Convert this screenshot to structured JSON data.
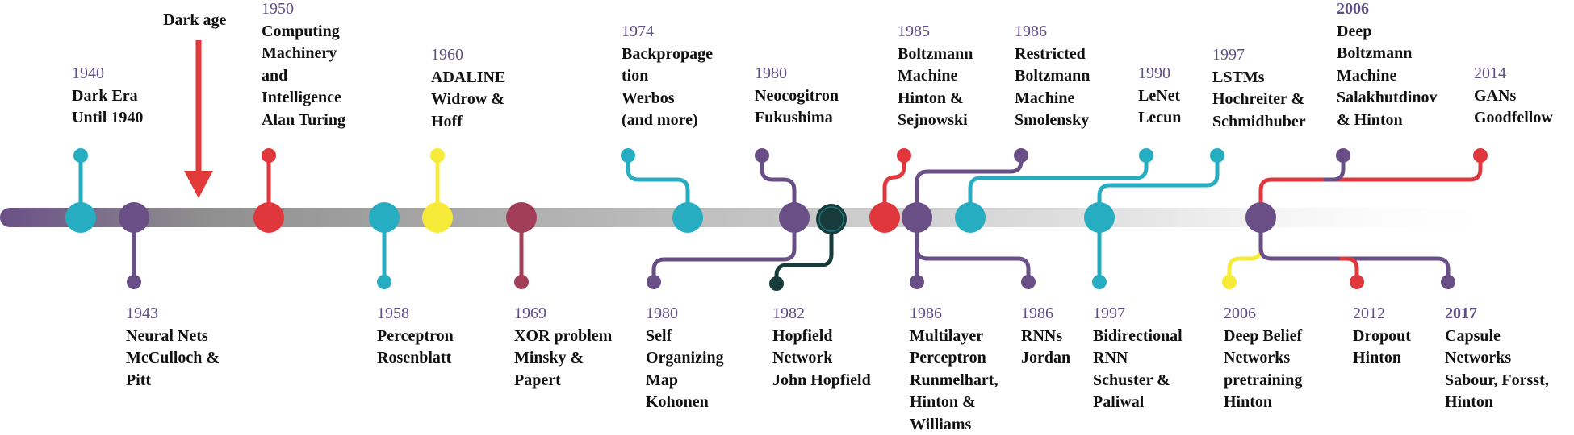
{
  "colors": {
    "teal": "#27adc1",
    "purple": "#6a4f86",
    "red": "#e0373d",
    "yellow": "#f7eb3a",
    "maroon": "#a33e58",
    "dark_green": "#173a3a",
    "arrow": "#e23a3a",
    "year_text": "#5e4f86",
    "label_text": "#111111"
  },
  "dark_age": {
    "label": "Dark age"
  },
  "events": [
    {
      "id": "e1940",
      "year": "1940",
      "lines": [
        "Dark Era",
        "Until 1940"
      ],
      "color": "teal"
    },
    {
      "id": "e1943",
      "year": "1943",
      "lines": [
        "Neural Nets",
        "McCulloch &",
        "Pitt"
      ],
      "color": "purple"
    },
    {
      "id": "e1950",
      "year": "1950",
      "lines": [
        "Computing",
        "Machinery",
        "and",
        "Intelligence",
        "Alan Turing"
      ],
      "color": "red"
    },
    {
      "id": "e1958",
      "year": "1958",
      "lines": [
        "Perceptron",
        "Rosenblatt"
      ],
      "color": "teal"
    },
    {
      "id": "e1960",
      "year": "1960",
      "lines": [
        "ADALINE",
        "Widrow &",
        "Hoff"
      ],
      "color": "yellow"
    },
    {
      "id": "e1969",
      "year": "1969",
      "lines": [
        "XOR problem",
        "Minsky &",
        "Papert"
      ],
      "color": "maroon"
    },
    {
      "id": "e1974",
      "year": "1974",
      "lines": [
        "Backpropage",
        "tion",
        "Werbos",
        "(and more)"
      ],
      "color": "teal"
    },
    {
      "id": "e1980a",
      "year": "1980",
      "lines": [
        "Self",
        "Organizing",
        "Map",
        "Kohonen"
      ],
      "color": "purple"
    },
    {
      "id": "e1980b",
      "year": "1980",
      "lines": [
        "Neocogitron",
        "Fukushima"
      ],
      "color": "purple"
    },
    {
      "id": "e1982",
      "year": "1982",
      "lines": [
        "Hopfield",
        "Network",
        "John Hopfield"
      ],
      "color": "dark_green"
    },
    {
      "id": "e1985",
      "year": "1985",
      "lines": [
        "Boltzmann",
        "Machine",
        "Hinton &",
        "Sejnowski"
      ],
      "color": "red"
    },
    {
      "id": "e1986a",
      "year": "1986",
      "lines": [
        "Restricted",
        "Boltzmann",
        "Machine",
        "Smolensky"
      ],
      "color": "purple"
    },
    {
      "id": "e1986b",
      "year": "1986",
      "lines": [
        "Multilayer",
        "Perceptron",
        "Runmelhart,",
        "Hinton &",
        "Williams"
      ],
      "color": "purple"
    },
    {
      "id": "e1986c",
      "year": "1986",
      "lines": [
        "RNNs",
        "Jordan"
      ],
      "color": "purple"
    },
    {
      "id": "e1990",
      "year": "1990",
      "lines": [
        "LeNet",
        "Lecun"
      ],
      "color": "teal"
    },
    {
      "id": "e1997a",
      "year": "1997",
      "lines": [
        "LSTMs",
        "Hochreiter &",
        "Schmidhuber"
      ],
      "color": "teal"
    },
    {
      "id": "e1997b",
      "year": "1997",
      "lines": [
        "Bidirectional",
        "RNN",
        "Schuster &",
        "Paliwal"
      ],
      "color": "teal"
    },
    {
      "id": "e2006a",
      "year": "2006",
      "lines": [
        "Deep",
        "Boltzmann",
        "Machine",
        "Salakhutdinov",
        "& Hinton"
      ],
      "color": "purple"
    },
    {
      "id": "e2006b",
      "year": "2006",
      "lines": [
        "Deep Belief",
        "Networks",
        "pretraining",
        "Hinton"
      ],
      "color": "yellow"
    },
    {
      "id": "e2012",
      "year": "2012",
      "lines": [
        "Dropout",
        "Hinton"
      ],
      "color": "red"
    },
    {
      "id": "e2014",
      "year": "2014",
      "lines": [
        "GANs",
        "Goodfellow"
      ],
      "color": "red"
    },
    {
      "id": "e2017",
      "year": "2017",
      "lines": [
        "Capsule",
        "Networks",
        "Sabour, Forsst,",
        "Hinton"
      ],
      "color": "purple"
    }
  ]
}
